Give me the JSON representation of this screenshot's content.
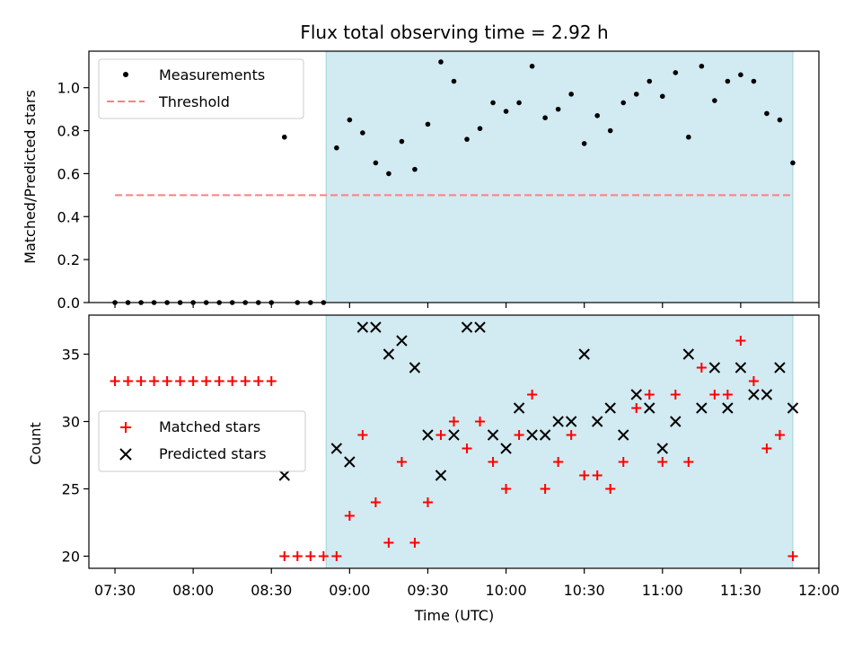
{
  "title": "Flux total observing time = 2.92 h",
  "colors": {
    "shade": "#add8e6",
    "measurement": "#000000",
    "threshold": "#ff7f7f",
    "matched": "#ff0000",
    "predicted": "#000000"
  },
  "chart_data": [
    {
      "type": "scatter",
      "panel": "top",
      "ylabel": "Matched/Predicted stars",
      "xlim": [
        "07:20",
        "12:00"
      ],
      "ylim": [
        0,
        1.17
      ],
      "yticks": [
        "0.0",
        "0.2",
        "0.4",
        "0.6",
        "0.8",
        "1.0"
      ],
      "ytick_values": [
        0,
        0.2,
        0.4,
        0.6,
        0.8,
        1.0
      ],
      "legend_position": "top-left",
      "legend": [
        {
          "label": "Measurements",
          "marker": "dot"
        },
        {
          "label": "Threshold",
          "marker": "dashed-line"
        }
      ],
      "threshold": {
        "name": "Threshold",
        "y": 0.5,
        "x_range": [
          "07:30",
          "11:50"
        ]
      },
      "shaded_span": [
        "08:51",
        "11:50"
      ],
      "series": [
        {
          "name": "Measurements",
          "x": [
            "07:30",
            "07:35",
            "07:40",
            "07:45",
            "07:50",
            "07:55",
            "08:00",
            "08:05",
            "08:10",
            "08:15",
            "08:20",
            "08:25",
            "08:30",
            "08:35",
            "08:40",
            "08:45",
            "08:50",
            "08:55",
            "09:00",
            "09:05",
            "09:10",
            "09:15",
            "09:20",
            "09:25",
            "09:30",
            "09:35",
            "09:40",
            "09:45",
            "09:50",
            "09:55",
            "10:00",
            "10:05",
            "10:10",
            "10:15",
            "10:20",
            "10:25",
            "10:30",
            "10:35",
            "10:40",
            "10:45",
            "10:50",
            "10:55",
            "11:00",
            "11:05",
            "11:10",
            "11:15",
            "11:20",
            "11:25",
            "11:30",
            "11:35",
            "11:40",
            "11:45",
            "11:50"
          ],
          "y": [
            0,
            0,
            0,
            0,
            0,
            0,
            0,
            0,
            0,
            0,
            0,
            0,
            0,
            0.77,
            0,
            0,
            0,
            0.72,
            0.85,
            0.79,
            0.65,
            0.6,
            0.75,
            0.62,
            0.83,
            1.12,
            1.03,
            0.76,
            0.81,
            0.93,
            0.89,
            0.93,
            1.1,
            0.86,
            0.9,
            0.97,
            0.74,
            0.87,
            0.8,
            0.93,
            0.97,
            1.03,
            0.96,
            1.07,
            0.77,
            1.1,
            0.94,
            1.03,
            1.06,
            1.03,
            0.88,
            0.85,
            0.65
          ]
        }
      ]
    },
    {
      "type": "scatter",
      "panel": "bottom",
      "xlabel": "Time (UTC)",
      "ylabel": "Count",
      "xlim": [
        "07:20",
        "12:00"
      ],
      "ylim": [
        19.1,
        37.9
      ],
      "xticks": [
        "07:30",
        "08:00",
        "08:30",
        "09:00",
        "09:30",
        "10:00",
        "10:30",
        "11:00",
        "11:30",
        "12:00"
      ],
      "yticks": [
        "20",
        "25",
        "30",
        "35"
      ],
      "ytick_values": [
        20,
        25,
        30,
        35
      ],
      "legend_position": "center-left",
      "legend": [
        {
          "label": "Matched stars",
          "marker": "plus"
        },
        {
          "label": "Predicted stars",
          "marker": "x"
        }
      ],
      "shaded_span": [
        "08:51",
        "11:50"
      ],
      "series": [
        {
          "name": "Matched stars",
          "x": [
            "07:30",
            "07:35",
            "07:40",
            "07:45",
            "07:50",
            "07:55",
            "08:00",
            "08:05",
            "08:10",
            "08:15",
            "08:20",
            "08:25",
            "08:30",
            "08:35",
            "08:40",
            "08:45",
            "08:50",
            "08:55",
            "09:00",
            "09:05",
            "09:10",
            "09:15",
            "09:20",
            "09:25",
            "09:30",
            "09:35",
            "09:40",
            "09:45",
            "09:50",
            "09:55",
            "10:00",
            "10:05",
            "10:10",
            "10:15",
            "10:20",
            "10:25",
            "10:30",
            "10:35",
            "10:40",
            "10:45",
            "10:50",
            "10:55",
            "11:00",
            "11:05",
            "11:10",
            "11:15",
            "11:20",
            "11:25",
            "11:30",
            "11:35",
            "11:40",
            "11:45",
            "11:50"
          ],
          "y": [
            33,
            33,
            33,
            33,
            33,
            33,
            33,
            33,
            33,
            33,
            33,
            33,
            33,
            20,
            20,
            20,
            20,
            20,
            23,
            29,
            24,
            21,
            27,
            21,
            24,
            29,
            30,
            28,
            30,
            27,
            25,
            29,
            32,
            25,
            27,
            29,
            26,
            26,
            25,
            27,
            31,
            32,
            27,
            32,
            27,
            34,
            32,
            32,
            36,
            33,
            28,
            29,
            20
          ]
        },
        {
          "name": "Predicted stars",
          "x": [
            "08:35",
            "08:55",
            "09:00",
            "09:05",
            "09:10",
            "09:15",
            "09:20",
            "09:25",
            "09:30",
            "09:35",
            "09:40",
            "09:45",
            "09:50",
            "09:55",
            "10:00",
            "10:05",
            "10:10",
            "10:15",
            "10:20",
            "10:25",
            "10:30",
            "10:35",
            "10:40",
            "10:45",
            "10:50",
            "10:55",
            "11:00",
            "11:05",
            "11:10",
            "11:15",
            "11:20",
            "11:25",
            "11:30",
            "11:35",
            "11:40",
            "11:45",
            "11:50"
          ],
          "y": [
            26,
            28,
            27,
            37,
            37,
            35,
            36,
            34,
            29,
            26,
            29,
            37,
            37,
            29,
            28,
            31,
            29,
            29,
            30,
            30,
            35,
            30,
            31,
            29,
            32,
            31,
            28,
            30,
            35,
            31,
            34,
            31,
            34,
            32,
            32,
            34,
            31
          ]
        }
      ]
    }
  ]
}
